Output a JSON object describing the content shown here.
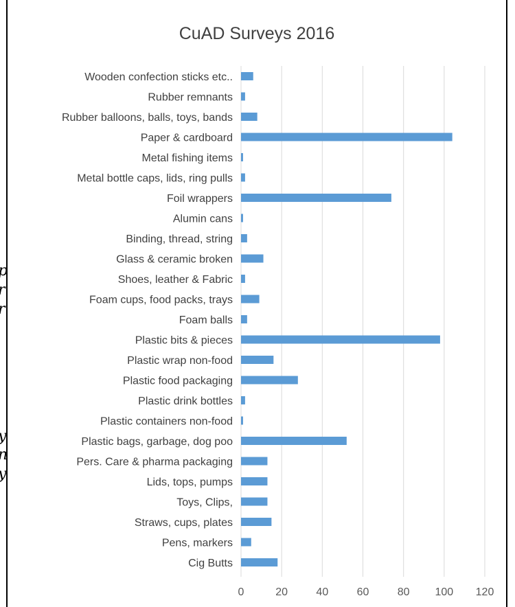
{
  "chart_data": {
    "type": "bar",
    "orientation": "horizontal",
    "title": "CuAD Surveys 2016",
    "xlabel": "",
    "ylabel": "",
    "xlim": [
      0,
      120
    ],
    "x_ticks": [
      "0",
      "20",
      "40",
      "60",
      "80",
      "100",
      "120"
    ],
    "grid": "vertical",
    "legend": "none",
    "bar_color": "#5b9bd5",
    "categories": [
      "Wooden confection sticks etc..",
      "Rubber remnants",
      "Rubber balloons, balls, toys, bands",
      "Paper & cardboard",
      "Metal fishing items",
      "Metal bottle caps, lids, ring pulls",
      "Foil wrappers",
      "Alumin cans",
      "Binding, thread, string",
      "Glass & ceramic broken",
      "Shoes, leather & Fabric",
      "Foam cups, food packs, trays",
      "Foam balls",
      "Plastic bits & pieces",
      "Plastic wrap non-food",
      "Plastic food packaging",
      "Plastic drink bottles",
      "Plastic containers non-food",
      "Plastic bags, garbage, dog poo",
      "Pers. Care & pharma packaging",
      "Lids, tops, pumps",
      "Toys, Clips,",
      "Straws, cups, plates",
      "Pens, markers",
      "Cig Butts"
    ],
    "values": [
      6,
      2,
      8,
      104,
      1,
      2,
      74,
      1,
      3,
      11,
      2,
      9,
      3,
      98,
      16,
      28,
      2,
      1,
      52,
      13,
      13,
      13,
      15,
      5,
      18
    ]
  }
}
